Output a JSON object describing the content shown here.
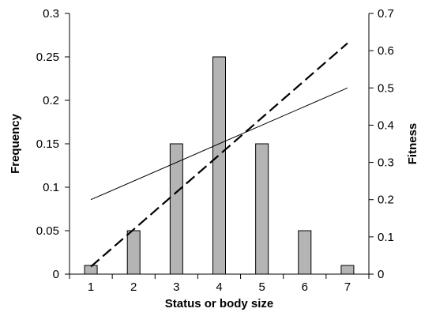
{
  "chart_data": {
    "type": "bar",
    "title": "",
    "xlabel": "Status or body size",
    "ylabel": "Frequency",
    "y2label": "Fitness",
    "categories": [
      "1",
      "2",
      "3",
      "4",
      "5",
      "6",
      "7"
    ],
    "ylim": [
      0,
      0.3
    ],
    "y2lim": [
      0,
      0.7
    ],
    "yticks": [
      "0",
      "0.05",
      "0.1",
      "0.15",
      "0.2",
      "0.25",
      "0.3"
    ],
    "y2ticks": [
      "0",
      "0.1",
      "0.2",
      "0.3",
      "0.4",
      "0.5",
      "0.6",
      "0.7"
    ],
    "grid": false,
    "series": [
      {
        "type": "bar",
        "axis": "left",
        "values": [
          0.01,
          0.05,
          0.15,
          0.25,
          0.15,
          0.05,
          0.01
        ],
        "color": "#b4b4b4"
      },
      {
        "type": "line",
        "axis": "right",
        "style": "solid",
        "x": [
          1,
          7
        ],
        "values": [
          0.2,
          0.5
        ],
        "color": "#000000"
      },
      {
        "type": "line",
        "axis": "right",
        "style": "dashed",
        "x": [
          1,
          7
        ],
        "values": [
          0.02,
          0.62
        ],
        "color": "#000000"
      }
    ]
  }
}
